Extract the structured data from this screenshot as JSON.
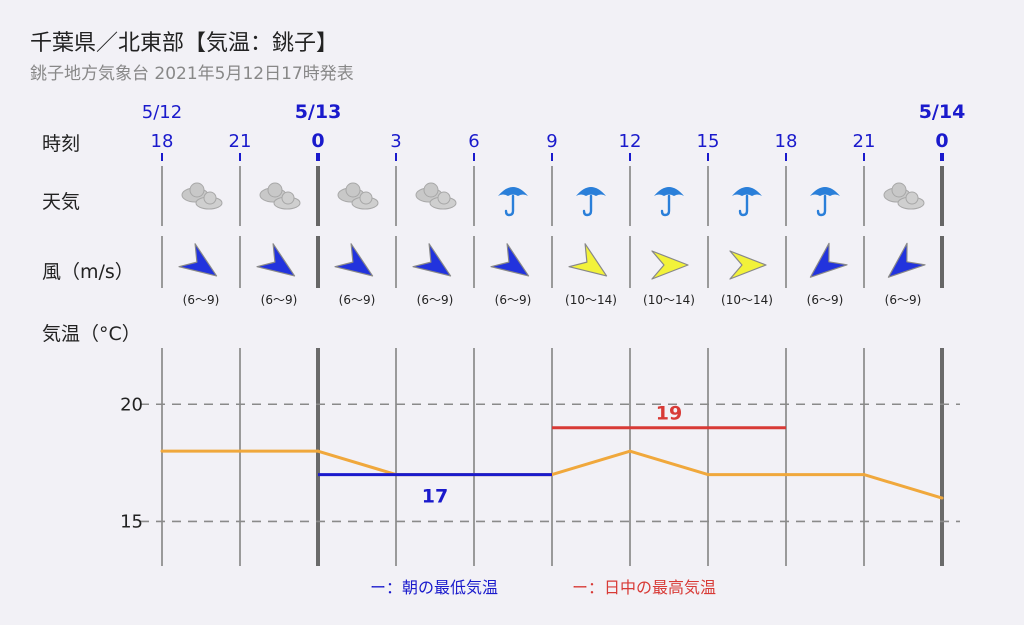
{
  "header": {
    "title": "千葉県／北東部【気温：銚子】",
    "subtitle": "銚子地方気象台 2021年5月12日17時発表"
  },
  "rows": {
    "time_label": "時刻",
    "weather_label": "天気",
    "wind_label": "風（m/s）",
    "temp_label": "気温（°C）"
  },
  "timeline": {
    "hours": [
      "18",
      "21",
      "0",
      "3",
      "6",
      "9",
      "12",
      "15",
      "18",
      "21",
      "0"
    ],
    "date_markers": [
      {
        "index": 0,
        "label": "5/12",
        "bold": false
      },
      {
        "index": 2,
        "label": "5/13",
        "bold": true
      },
      {
        "index": 10,
        "label": "5/14",
        "bold": true
      }
    ]
  },
  "weather": [
    "cloudy-icon",
    "cloudy-icon",
    "cloudy-icon",
    "cloudy-icon",
    "umbrella-icon",
    "umbrella-icon",
    "umbrella-icon",
    "umbrella-icon",
    "umbrella-icon",
    "cloudy-icon"
  ],
  "wind": [
    {
      "speed": "(6〜9)",
      "direction": "SE",
      "color": "#2233dd"
    },
    {
      "speed": "(6〜9)",
      "direction": "SE",
      "color": "#2233dd"
    },
    {
      "speed": "(6〜9)",
      "direction": "SE",
      "color": "#2233dd"
    },
    {
      "speed": "(6〜9)",
      "direction": "SE",
      "color": "#2233dd"
    },
    {
      "speed": "(6〜9)",
      "direction": "SE",
      "color": "#2233dd"
    },
    {
      "speed": "(10〜14)",
      "direction": "SE",
      "color": "#f2f23a"
    },
    {
      "speed": "(10〜14)",
      "direction": "E",
      "color": "#f2f23a"
    },
    {
      "speed": "(10〜14)",
      "direction": "E",
      "color": "#f2f23a"
    },
    {
      "speed": "(6〜9)",
      "direction": "SW",
      "color": "#2233dd"
    },
    {
      "speed": "(6〜9)",
      "direction": "SW",
      "color": "#2233dd"
    }
  ],
  "chart_data": {
    "type": "line",
    "x": [
      "18",
      "21",
      "0",
      "3",
      "6",
      "9",
      "12",
      "15",
      "18",
      "21",
      "0"
    ],
    "series": [
      {
        "values": [
          18,
          18,
          18,
          17,
          17,
          17,
          18,
          17,
          17,
          17,
          16
        ],
        "color": "#f0a83c"
      }
    ],
    "min_temp": {
      "value": "17",
      "from_index": 2,
      "to_index": 5,
      "level": 17,
      "color": "#1a1acc"
    },
    "max_temp": {
      "value": "19",
      "from_index": 5,
      "to_index": 8,
      "level": 19,
      "color": "#d83a36"
    },
    "yticks": [
      "20",
      "15"
    ],
    "ylim": [
      13.1,
      22.4
    ],
    "grid": true
  },
  "legend": {
    "min_label": "ー：朝の最低気温",
    "max_label": "ー：日中の最高気温",
    "min_color": "#1a1acc",
    "max_color": "#d83a36"
  }
}
